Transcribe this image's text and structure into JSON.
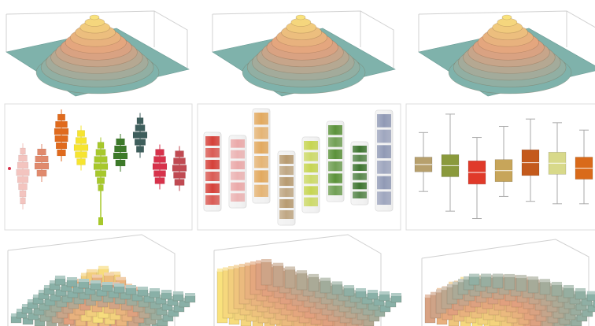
{
  "gallery": {
    "panels": [
      {
        "id": "surface-1",
        "kind": "3d-surface",
        "style": "contour"
      },
      {
        "id": "surface-2",
        "kind": "3d-surface",
        "style": "contour"
      },
      {
        "id": "surface-3",
        "kind": "3d-surface",
        "style": "contour"
      },
      {
        "id": "stepped-boxes",
        "kind": "stepped-histogram"
      },
      {
        "id": "banded-bars",
        "kind": "banded-column"
      },
      {
        "id": "box-whisker",
        "kind": "box-whisker"
      },
      {
        "id": "bar3d-1",
        "kind": "3d-histogram"
      },
      {
        "id": "bar3d-2",
        "kind": "3d-histogram"
      },
      {
        "id": "bar3d-3",
        "kind": "3d-histogram"
      }
    ]
  },
  "chart_data": [
    {
      "type": "area",
      "subtype": "3d-contour-surface",
      "peak": 1.0,
      "colors": [
        "#6fa9a8",
        "#d99a7a",
        "#f7e07a"
      ]
    },
    {
      "type": "area",
      "subtype": "3d-contour-surface",
      "peak": 1.0,
      "colors": [
        "#6fa9a8",
        "#d99a7a",
        "#f7e07a"
      ]
    },
    {
      "type": "area",
      "subtype": "3d-contour-surface",
      "peak": 1.0,
      "colors": [
        "#6fa9a8",
        "#d99a7a",
        "#f7e07a"
      ]
    },
    {
      "type": "bar",
      "subtype": "stepped-distribution",
      "series": [
        {
          "color": "#f3c4bf",
          "profile": [
            0.2,
            0.5,
            0.7,
            0.9,
            0.7,
            0.5,
            0.3,
            0.2
          ]
        },
        {
          "color": "#e08a6d",
          "profile": [
            0.5,
            0.9,
            1.0,
            0.6
          ]
        },
        {
          "color": "#e06a1d",
          "profile": [
            0.4,
            0.8,
            1.0,
            0.9,
            0.7,
            0.5
          ]
        },
        {
          "color": "#f6e430",
          "profile": [
            0.4,
            0.7,
            1.0,
            0.8,
            0.5
          ]
        },
        {
          "color": "#a7c82c",
          "profile": [
            0.3,
            0.6,
            0.9,
            1.0,
            0.7,
            0.4,
            0.2
          ]
        },
        {
          "color": "#3d7a2a",
          "profile": [
            0.5,
            0.8,
            1.0,
            0.6
          ]
        },
        {
          "color": "#3e5e5c",
          "profile": [
            0.3,
            0.6,
            1.0,
            0.7,
            0.4
          ]
        },
        {
          "color": "#d7324b",
          "profile": [
            0.5,
            0.8,
            1.0,
            0.8,
            0.6
          ]
        },
        {
          "color": "#c04a52",
          "profile": [
            0.5,
            0.8,
            1.0,
            0.8,
            0.6
          ]
        }
      ]
    },
    {
      "type": "bar",
      "subtype": "banded-columns",
      "series": [
        {
          "color": "#d2322a"
        },
        {
          "color": "#e9a2a2"
        },
        {
          "color": "#e0a353"
        },
        {
          "color": "#b29366"
        },
        {
          "color": "#c2d245"
        },
        {
          "color": "#4f8a2b"
        },
        {
          "color": "#2f6a20"
        },
        {
          "color": "#8892b0"
        }
      ]
    },
    {
      "type": "bar",
      "subtype": "box-whisker",
      "series": [
        {
          "color": "#b7a06d",
          "min": 0.3,
          "q1": 0.46,
          "q3": 0.58,
          "max": 0.78
        },
        {
          "color": "#8a9a3c",
          "min": 0.14,
          "q1": 0.42,
          "q3": 0.6,
          "max": 0.93
        },
        {
          "color": "#e03a2a",
          "min": 0.08,
          "q1": 0.36,
          "q3": 0.55,
          "max": 0.74
        },
        {
          "color": "#c7a55a",
          "min": 0.26,
          "q1": 0.38,
          "q3": 0.56,
          "max": 0.83
        },
        {
          "color": "#c45a1c",
          "min": 0.22,
          "q1": 0.43,
          "q3": 0.64,
          "max": 0.89
        },
        {
          "color": "#d8d98a",
          "min": 0.2,
          "q1": 0.44,
          "q3": 0.62,
          "max": 0.86
        },
        {
          "color": "#d96a1a",
          "min": 0.2,
          "q1": 0.4,
          "q3": 0.58,
          "max": 0.8
        }
      ]
    },
    {
      "type": "bar",
      "subtype": "3d-bar-surface",
      "colors": [
        "#7aaea8",
        "#d9a47c",
        "#f1d98a"
      ]
    },
    {
      "type": "bar",
      "subtype": "3d-bar-surface",
      "colors": [
        "#7aaea8",
        "#d9a47c",
        "#f1d98a"
      ]
    },
    {
      "type": "bar",
      "subtype": "3d-bar-surface",
      "colors": [
        "#7aaea8",
        "#d9a47c",
        "#f1d98a"
      ]
    }
  ]
}
